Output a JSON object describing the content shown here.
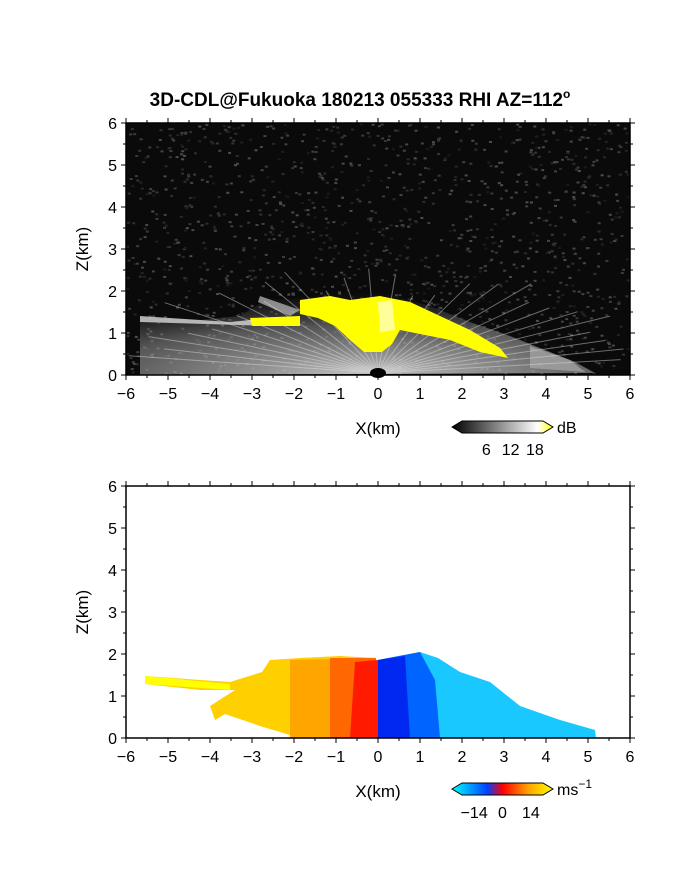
{
  "title": "3D-CDL@Fukuoka 180213 055333 RHI AZ=112",
  "title_superscript": "o",
  "chart_data": [
    {
      "type": "heatmap",
      "name": "reflectivity",
      "xlabel": "X(km)",
      "ylabel": "Z(km)",
      "xlim": [
        -6,
        6
      ],
      "ylim": [
        0,
        6
      ],
      "xticks": [
        "−6",
        "−5",
        "−4",
        "−3",
        "−2",
        "−1",
        "0",
        "1",
        "2",
        "3",
        "4",
        "5",
        "6"
      ],
      "yticks": [
        "0",
        "1",
        "2",
        "3",
        "4",
        "5",
        "6"
      ],
      "background": "#0a0a0a",
      "colorbar": {
        "unit": "dB",
        "ticks": [
          "6",
          "12",
          "18"
        ],
        "range": [
          0,
          20
        ],
        "colors": [
          "#000000",
          "#ffffff",
          "#ffff00"
        ]
      }
    },
    {
      "type": "heatmap",
      "name": "doppler_velocity",
      "xlabel": "X(km)",
      "ylabel": "Z(km)",
      "xlim": [
        -6,
        6
      ],
      "ylim": [
        0,
        6
      ],
      "xticks": [
        "−6",
        "−5",
        "−4",
        "−3",
        "−2",
        "−1",
        "0",
        "1",
        "2",
        "3",
        "4",
        "5",
        "6"
      ],
      "yticks": [
        "0",
        "1",
        "2",
        "3",
        "4",
        "5",
        "6"
      ],
      "background": "#ffffff",
      "colorbar": {
        "unit": "ms",
        "unit_superscript": "−1",
        "ticks": [
          "−14",
          "0",
          "14"
        ],
        "range": [
          -20,
          20
        ],
        "colors": [
          "#00ffff",
          "#0040ff",
          "#ff0000",
          "#ffa000",
          "#ffff00"
        ]
      }
    }
  ]
}
